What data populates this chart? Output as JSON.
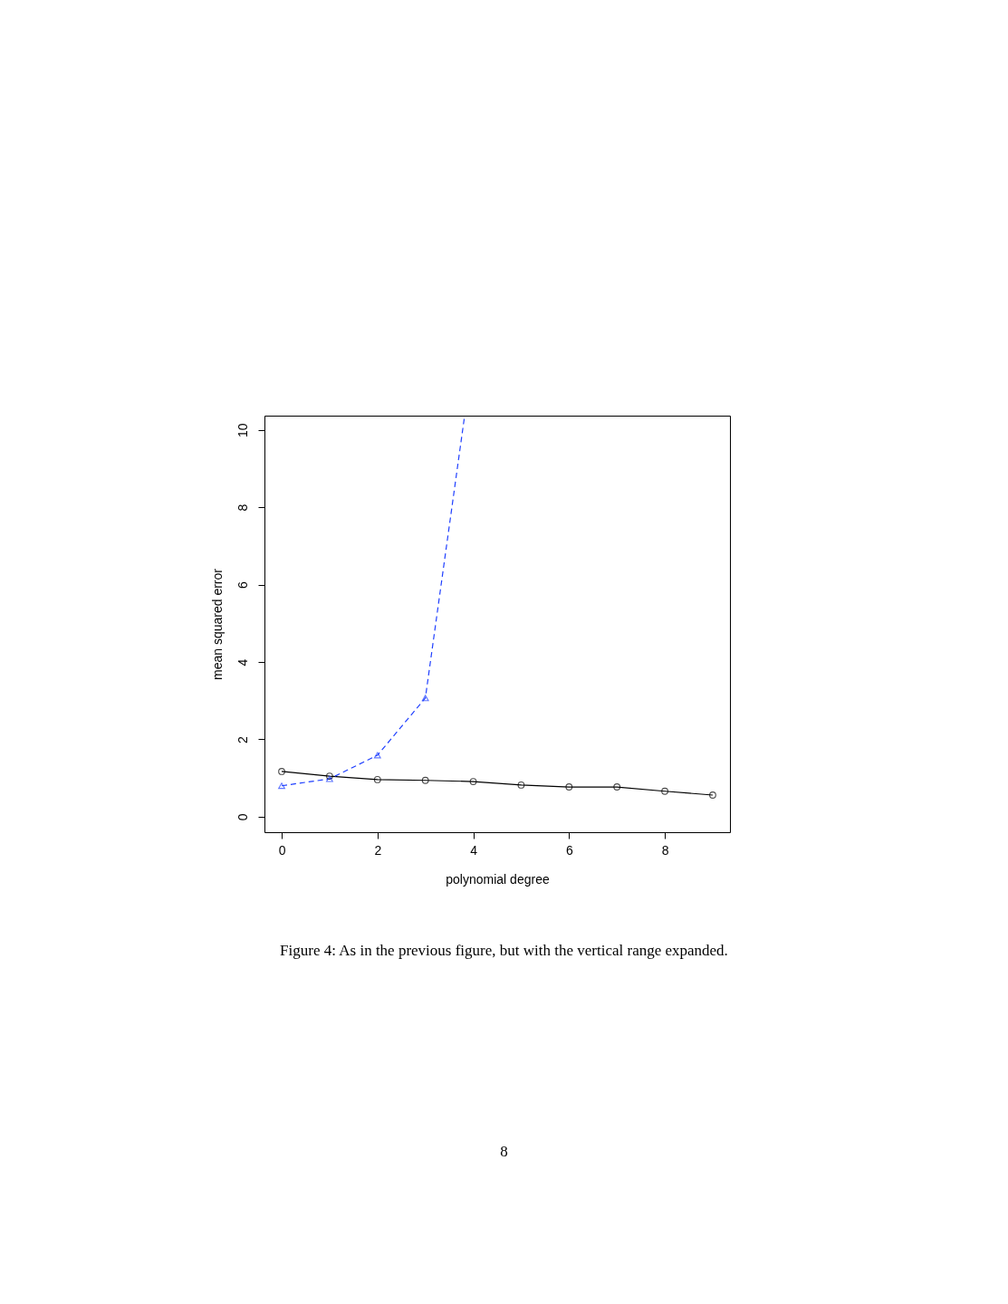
{
  "chart_data": {
    "type": "line",
    "xlabel": "polynomial degree",
    "ylabel": "mean squared error",
    "xlim": [
      -0.36,
      9.36
    ],
    "ylim": [
      -0.4,
      10.37
    ],
    "xticks": [
      0,
      2,
      4,
      6,
      8
    ],
    "yticks": [
      0,
      2,
      4,
      6,
      8,
      10
    ],
    "series": [
      {
        "color": "#000000",
        "marker": "circle",
        "line_style": "solid",
        "x": [
          0,
          1,
          2,
          3,
          4,
          5,
          6,
          7,
          8,
          9
        ],
        "values": [
          1.17,
          1.05,
          0.96,
          0.94,
          0.91,
          0.82,
          0.77,
          0.77,
          0.66,
          0.56
        ]
      },
      {
        "color": "#1f3fff",
        "marker": "triangle",
        "line_style": "dashed",
        "x": [
          0,
          1,
          2,
          3,
          3.82
        ],
        "values": [
          0.8,
          0.98,
          1.59,
          3.07,
          10.37
        ]
      }
    ],
    "annotations": [
      "Figure 4: As in the previous figure, but with the vertical range expanded.",
      "8"
    ]
  }
}
